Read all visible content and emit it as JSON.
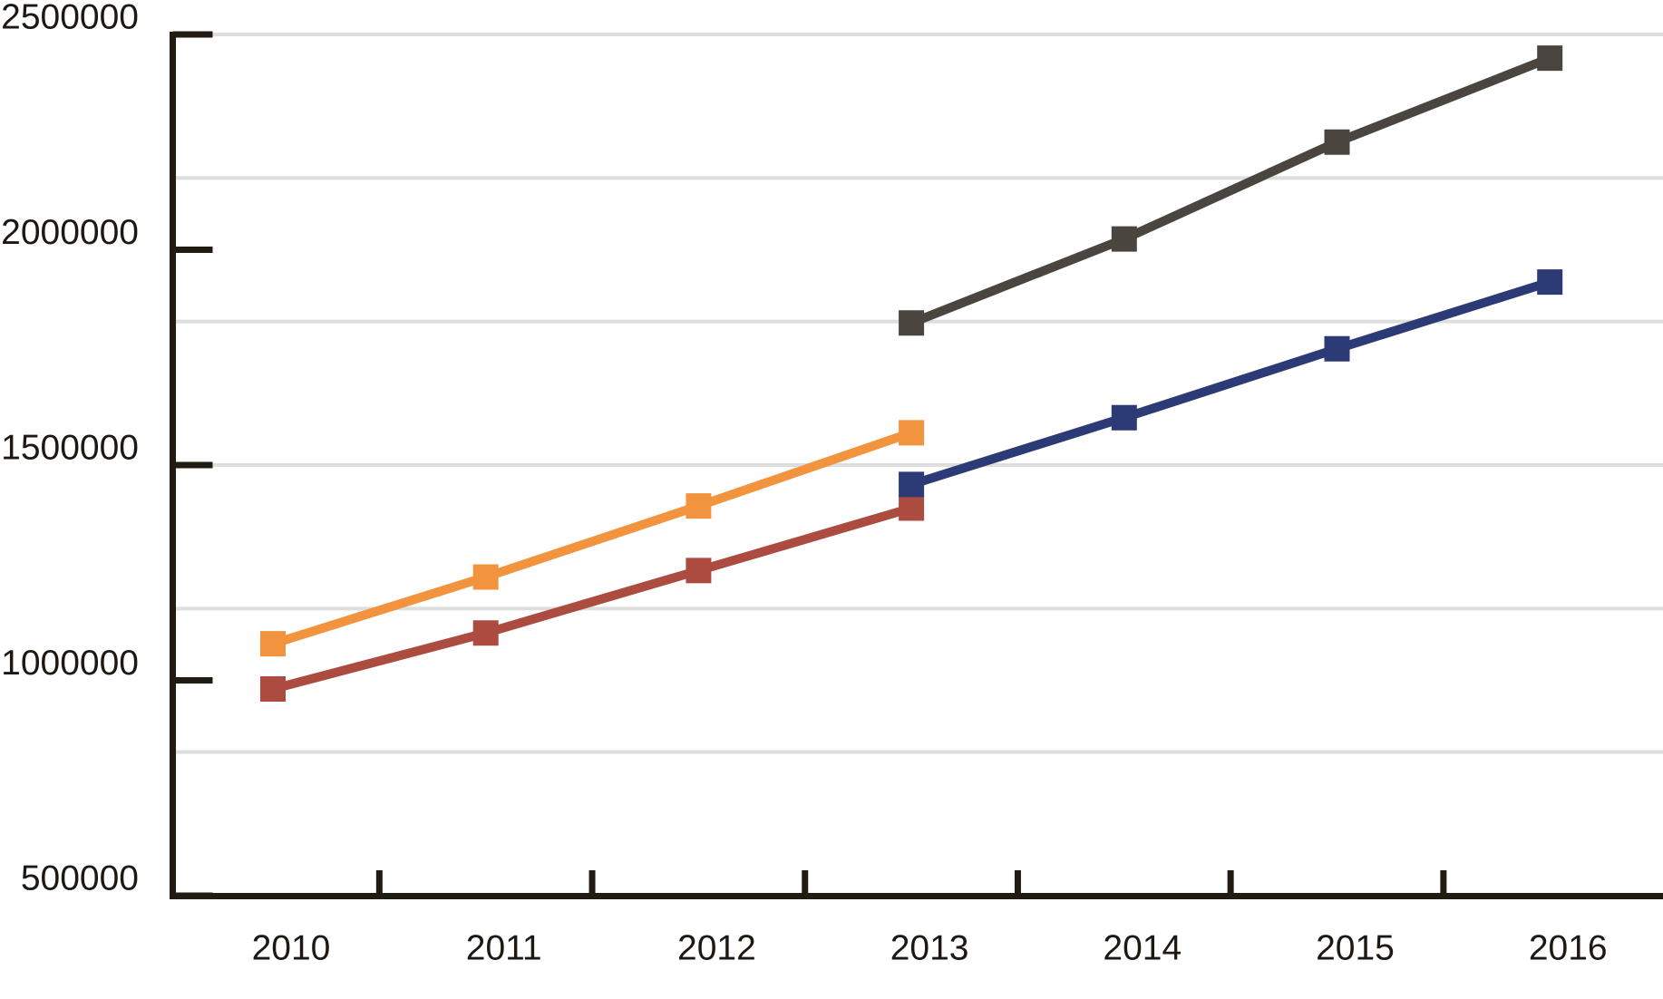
{
  "chart_data": {
    "type": "line",
    "title": "",
    "xlabel": "",
    "ylabel": "",
    "x_categories": [
      "2010",
      "2011",
      "2012",
      "2013",
      "2014",
      "2015",
      "2016"
    ],
    "y_axis": {
      "min": 500000,
      "max": 2500000,
      "ticks": [
        2500000,
        2000000,
        1500000,
        1000000,
        500000
      ],
      "tick_labels": [
        "2500000",
        "2000000",
        "1500000",
        "1000000",
        "500000"
      ]
    },
    "x_axis": {
      "tick_labels": [
        "2010",
        "2011",
        "2012",
        "2013",
        "2014",
        "2015",
        "2016"
      ],
      "minor_ticks_between_years": true
    },
    "gridlines": {
      "orientation": "horizontal",
      "count_between_top_and_axis": 6,
      "approx_value_interval": 333333,
      "color": "#DEDEDE"
    },
    "legend": {
      "visible": false
    },
    "marker_style": "square",
    "series": [
      {
        "name": "orange-series",
        "color": "#F2933E",
        "years": [
          "2010",
          "2011",
          "2012",
          "2013"
        ],
        "values": [
          1085000,
          1240000,
          1405000,
          1575000
        ]
      },
      {
        "name": "brick-red-series",
        "color": "#AC4B40",
        "years": [
          "2010",
          "2011",
          "2012",
          "2013"
        ],
        "values": [
          980000,
          1110000,
          1255000,
          1400000
        ]
      },
      {
        "name": "dark-gray-series",
        "color": "#4B4540",
        "years": [
          "2013",
          "2014",
          "2015",
          "2016"
        ],
        "values": [
          1830000,
          2025000,
          2250000,
          2445000
        ]
      },
      {
        "name": "navy-series",
        "color": "#2C3A76",
        "years": [
          "2013",
          "2014",
          "2015",
          "2016"
        ],
        "values": [
          1455000,
          1610000,
          1770000,
          1925000
        ]
      }
    ],
    "axis_color": "#221B12",
    "text_color": "#1D1812",
    "background_color": "#FFFFFF"
  }
}
